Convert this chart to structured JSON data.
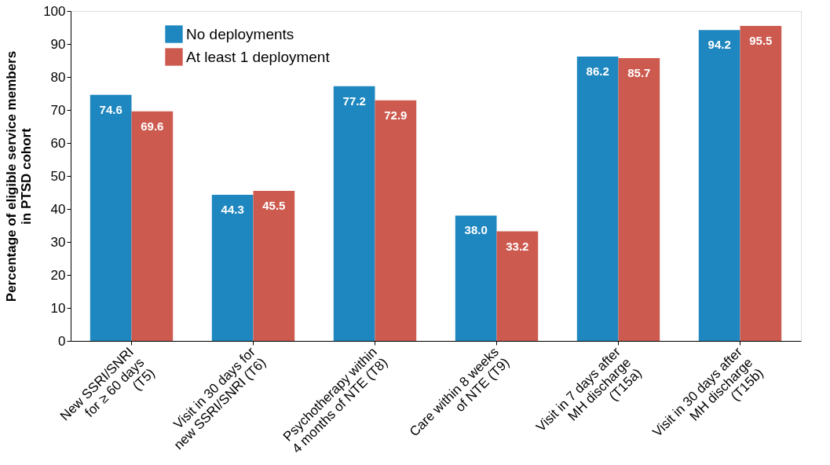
{
  "chart_data": {
    "type": "bar",
    "ylabel": "Percentage of eligible service members\nin PTSD cohort",
    "categories": [
      "New SSRI/SNRI\nfor ≥ 60 days\n(T5)",
      "Visit in 30 days for\nnew SSRI/SNRI (T6)",
      "Psychotherapy within\n4 months of NTE (T8)",
      "Care within 8 weeks\nof NTE (T9)",
      "Visit in 7 days after\nMH discharge\n(T15a)",
      "Visit in 30 days after\nMH discharge\n(T15b)"
    ],
    "series": [
      {
        "name": "No deployments",
        "color": "#1f87bf",
        "values": [
          74.6,
          44.3,
          77.2,
          38.0,
          86.2,
          94.2
        ],
        "value_labels": [
          "74.6",
          "44.3",
          "77.2",
          "38.0",
          "86.2",
          "94.2"
        ]
      },
      {
        "name": "At least 1 deployment",
        "color": "#cd5a4f",
        "values": [
          69.6,
          45.5,
          72.9,
          33.2,
          85.7,
          95.5
        ],
        "value_labels": [
          "69.6",
          "45.5",
          "72.9",
          "33.2",
          "85.7",
          "95.5"
        ]
      }
    ],
    "ylim": [
      0,
      100
    ],
    "yticks": [
      0,
      10,
      20,
      30,
      40,
      50,
      60,
      70,
      80,
      90,
      100
    ],
    "grid": false,
    "legend": "top left"
  }
}
